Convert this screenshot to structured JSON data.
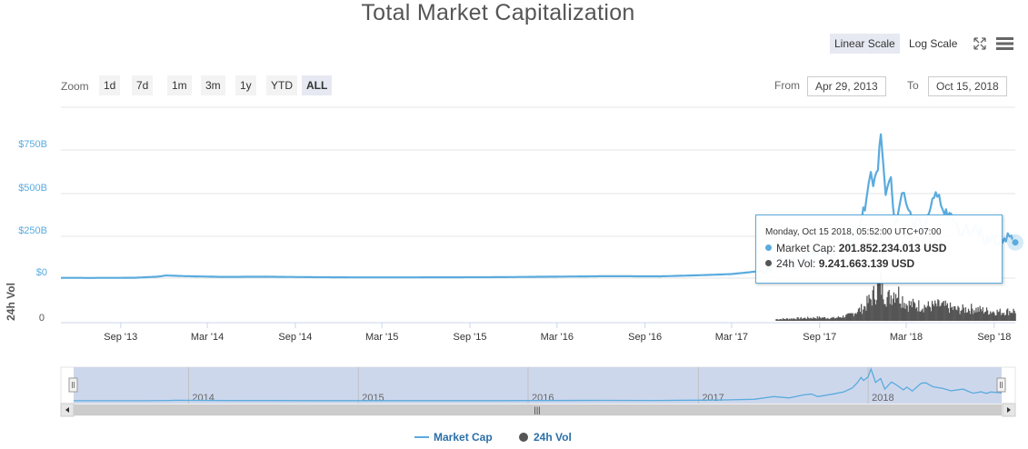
{
  "title": "Total Market Capitalization",
  "scale_buttons": {
    "linear": "Linear Scale",
    "log": "Log Scale"
  },
  "icons": {
    "fullscreen": "fullscreen-icon",
    "menu": "hamburger-menu-icon"
  },
  "zoom": {
    "label": "Zoom",
    "buttons": [
      "1d",
      "7d",
      "1m",
      "3m",
      "1y",
      "YTD",
      "ALL"
    ],
    "active": "ALL"
  },
  "range": {
    "from_label": "From",
    "from": "Apr 29, 2013",
    "to_label": "To",
    "to": "Oct 15, 2018"
  },
  "tooltip": {
    "date": "Monday, Oct 15 2018, 05:52:00 UTC+07:00",
    "market_cap_label": "Market Cap:",
    "market_cap_value": "201.852.234.013 USD",
    "vol_label": "24h Vol:",
    "vol_value": "9.241.663.139 USD"
  },
  "colors": {
    "market_cap": "#5aabde",
    "volume": "#555555",
    "navigator_fill": "#c8d3ea"
  },
  "chart_data": {
    "type": "line",
    "x_start": "2013-04-29",
    "x_end": "2018-10-15",
    "x_ticks": [
      "Sep '13",
      "Mar '14",
      "Sep '14",
      "Mar '15",
      "Sep '15",
      "Mar '16",
      "Sep '16",
      "Mar '17",
      "Sep '17",
      "Mar '18",
      "Sep '18"
    ],
    "y_ticks_market_cap": [
      "$750B",
      "$500B",
      "$250B",
      "$0"
    ],
    "y_ticks_volume": [
      "0"
    ],
    "ylabel_volume": "24h Vol",
    "ylim_market_cap_billion": [
      0,
      800
    ],
    "navigator_years": [
      "2014",
      "2015",
      "2016",
      "2017",
      "2018"
    ],
    "series": [
      {
        "name": "Market Cap",
        "unit": "billion USD",
        "points": [
          [
            "2013-04-29",
            1.5
          ],
          [
            "2013-07-01",
            1.2
          ],
          [
            "2013-10-01",
            2.0
          ],
          [
            "2013-11-20",
            9
          ],
          [
            "2013-12-04",
            15
          ],
          [
            "2014-01-15",
            11
          ],
          [
            "2014-04-01",
            7
          ],
          [
            "2014-07-01",
            8
          ],
          [
            "2014-10-01",
            5.5
          ],
          [
            "2015-01-15",
            4
          ],
          [
            "2015-07-01",
            4.5
          ],
          [
            "2015-11-01",
            5.5
          ],
          [
            "2016-01-01",
            7
          ],
          [
            "2016-06-15",
            11
          ],
          [
            "2016-10-01",
            10
          ],
          [
            "2017-01-01",
            17
          ],
          [
            "2017-03-01",
            23
          ],
          [
            "2017-05-01",
            40
          ],
          [
            "2017-06-12",
            110
          ],
          [
            "2017-07-15",
            75
          ],
          [
            "2017-08-15",
            150
          ],
          [
            "2017-09-01",
            175
          ],
          [
            "2017-09-15",
            110
          ],
          [
            "2017-10-20",
            180
          ],
          [
            "2017-11-10",
            230
          ],
          [
            "2017-11-28",
            330
          ],
          [
            "2017-12-08",
            450
          ],
          [
            "2017-12-17",
            600
          ],
          [
            "2017-12-22",
            520
          ],
          [
            "2018-01-01",
            610
          ],
          [
            "2018-01-07",
            813
          ],
          [
            "2018-01-12",
            650
          ],
          [
            "2018-01-17",
            470
          ],
          [
            "2018-01-28",
            570
          ],
          [
            "2018-02-06",
            300
          ],
          [
            "2018-02-20",
            480
          ],
          [
            "2018-03-01",
            420
          ],
          [
            "2018-03-18",
            280
          ],
          [
            "2018-03-25",
            350
          ],
          [
            "2018-04-06",
            250
          ],
          [
            "2018-04-25",
            450
          ],
          [
            "2018-05-05",
            460
          ],
          [
            "2018-05-20",
            360
          ],
          [
            "2018-06-10",
            320
          ],
          [
            "2018-06-28",
            255
          ],
          [
            "2018-07-24",
            300
          ],
          [
            "2018-08-14",
            195
          ],
          [
            "2018-09-01",
            230
          ],
          [
            "2018-09-12",
            190
          ],
          [
            "2018-09-22",
            225
          ],
          [
            "2018-10-10",
            210
          ],
          [
            "2018-10-15",
            201.85
          ]
        ]
      },
      {
        "name": "24h Vol",
        "unit": "billion USD",
        "points": [
          [
            "2017-06-01",
            1.5
          ],
          [
            "2017-08-01",
            2.5
          ],
          [
            "2017-09-01",
            3.0
          ],
          [
            "2017-10-01",
            2.5
          ],
          [
            "2017-11-01",
            5
          ],
          [
            "2017-12-01",
            12
          ],
          [
            "2017-12-20",
            22
          ],
          [
            "2018-01-05",
            33
          ],
          [
            "2018-01-20",
            20
          ],
          [
            "2018-02-06",
            28
          ],
          [
            "2018-03-01",
            15
          ],
          [
            "2018-04-15",
            13
          ],
          [
            "2018-05-10",
            14
          ],
          [
            "2018-06-15",
            10
          ],
          [
            "2018-07-15",
            11
          ],
          [
            "2018-08-15",
            9
          ],
          [
            "2018-09-15",
            8
          ],
          [
            "2018-10-15",
            9.24
          ]
        ]
      }
    ]
  },
  "legend": [
    "Market Cap",
    "24h Vol"
  ]
}
